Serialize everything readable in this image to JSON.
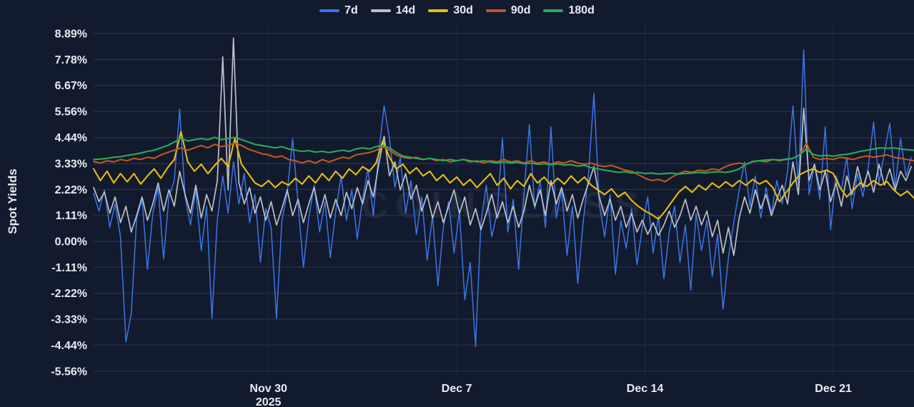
{
  "watermark": "COINGLASS",
  "colors": {
    "background": "#121a2d",
    "grid": "#242f4c",
    "tick_text": "#e9ecf2"
  },
  "chart_data": {
    "type": "line",
    "title": "",
    "xlabel": "",
    "ylabel": "Spot Yields",
    "legend_position": "top",
    "grid": true,
    "x_domain": [
      0,
      30.5
    ],
    "y_ticks": [
      {
        "label": "8.89%",
        "value": 8.89
      },
      {
        "label": "7.78%",
        "value": 7.78
      },
      {
        "label": "6.67%",
        "value": 6.67
      },
      {
        "label": "5.56%",
        "value": 5.56
      },
      {
        "label": "4.44%",
        "value": 4.44
      },
      {
        "label": "3.33%",
        "value": 3.33
      },
      {
        "label": "2.22%",
        "value": 2.22
      },
      {
        "label": "1.11%",
        "value": 1.11
      },
      {
        "label": "0.00%",
        "value": 0.0
      },
      {
        "label": "-1.11%",
        "value": -1.11
      },
      {
        "label": "-2.22%",
        "value": -2.22
      },
      {
        "label": "-3.33%",
        "value": -3.33
      },
      {
        "label": "-4.44%",
        "value": -4.44
      },
      {
        "label": "-5.56%",
        "value": -5.56
      }
    ],
    "x_ticks": [
      {
        "label": "Nov 30",
        "sublabel": "2025",
        "value": 6.5
      },
      {
        "label": "Dec 7",
        "sublabel": "",
        "value": 13.5
      },
      {
        "label": "Dec 14",
        "sublabel": "",
        "value": 20.5
      },
      {
        "label": "Dec 21",
        "sublabel": "",
        "value": 27.5
      }
    ],
    "series": [
      {
        "name": "7d",
        "color": "#3b76e8",
        "stroke_width": 1.5,
        "x0": 0,
        "dx": 0.2,
        "values": [
          2.05,
          1.3,
          2.2,
          0.6,
          1.6,
          0.2,
          -4.3,
          -3.1,
          1.0,
          1.8,
          -1.2,
          1.2,
          2.3,
          -0.75,
          1.9,
          2.6,
          5.66,
          1.9,
          0.7,
          2.2,
          -0.4,
          1.5,
          -3.3,
          0.9,
          2.8,
          1.2,
          3.4,
          1.6,
          2.9,
          0.8,
          2.0,
          -0.9,
          1.4,
          0.6,
          -3.3,
          0.9,
          2.1,
          4.4,
          1.6,
          -1.1,
          1.0,
          2.4,
          0.4,
          1.7,
          -0.7,
          1.3,
          2.8,
          0.9,
          2.2,
          0.1,
          1.8,
          3.1,
          1.1,
          3.8,
          5.8,
          4.4,
          2.3,
          3.6,
          1.2,
          2.6,
          0.3,
          1.9,
          -0.8,
          1.1,
          -1.9,
          0.6,
          1.7,
          -0.5,
          1.3,
          -2.5,
          -0.9,
          -4.5,
          0.8,
          2.4,
          0.2,
          1.2,
          4.4,
          0.4,
          1.8,
          -1.2,
          2.0,
          5.0,
          1.4,
          2.6,
          0.6,
          4.9,
          1.0,
          2.2,
          -0.6,
          1.5,
          -1.8,
          0.8,
          2.9,
          6.33,
          1.6,
          0.2,
          2.0,
          -1.4,
          0.9,
          -0.3,
          1.4,
          -1.0,
          0.6,
          1.9,
          -0.5,
          1.1,
          -1.6,
          0.4,
          1.5,
          -0.9,
          0.7,
          -2.1,
          1.2,
          -0.4,
          0.9,
          -1.5,
          0.3,
          -2.9,
          -0.7,
          0.8,
          2.2,
          3.4,
          1.5,
          2.8,
          1.0,
          2.3,
          1.2,
          2.6,
          1.6,
          3.0,
          5.8,
          2.4,
          8.2,
          2.0,
          3.3,
          1.8,
          4.9,
          0.5,
          2.8,
          2.2,
          3.6,
          1.4,
          2.9,
          1.9,
          3.2,
          5.1,
          2.5,
          3.8,
          5.05,
          2.3,
          4.4,
          2.8,
          3.6
        ]
      },
      {
        "name": "14d",
        "color": "#bcc0c9",
        "stroke_width": 1.7,
        "x0": 0,
        "dx": 0.2,
        "values": [
          2.3,
          1.7,
          2.1,
          1.2,
          1.9,
          0.8,
          1.5,
          0.4,
          1.1,
          1.9,
          0.9,
          1.6,
          2.5,
          1.3,
          2.2,
          1.5,
          3.0,
          2.0,
          1.2,
          2.4,
          1.0,
          2.0,
          1.3,
          2.6,
          7.9,
          2.2,
          8.7,
          2.5,
          1.6,
          2.3,
          1.2,
          1.9,
          0.9,
          1.7,
          0.7,
          1.4,
          2.2,
          1.1,
          1.8,
          0.8,
          1.6,
          2.3,
          1.2,
          2.0,
          1.0,
          1.8,
          1.1,
          2.1,
          1.4,
          2.3,
          1.6,
          2.6,
          1.9,
          3.3,
          4.5,
          2.8,
          3.4,
          2.2,
          2.9,
          1.8,
          2.4,
          1.3,
          2.0,
          1.0,
          1.7,
          0.8,
          1.5,
          2.2,
          1.2,
          1.9,
          0.7,
          1.4,
          0.5,
          1.2,
          2.0,
          1.0,
          1.7,
          0.8,
          1.5,
          0.6,
          1.3,
          2.4,
          1.5,
          2.2,
          1.1,
          2.6,
          1.6,
          2.3,
          1.3,
          2.0,
          1.0,
          1.8,
          2.5,
          3.2,
          1.9,
          1.1,
          1.8,
          0.9,
          1.5,
          0.6,
          1.2,
          0.4,
          0.9,
          0.3,
          0.8,
          0.25,
          0.7,
          1.3,
          0.6,
          1.1,
          1.8,
          0.9,
          1.5,
          0.7,
          1.3,
          0.2,
          0.9,
          -0.5,
          0.6,
          -0.6,
          1.0,
          1.9,
          1.2,
          2.2,
          1.4,
          2.0,
          1.1,
          1.8,
          2.4,
          1.6,
          3.4,
          2.0,
          5.7,
          2.6,
          3.3,
          2.2,
          3.0,
          1.7,
          2.5,
          1.5,
          2.8,
          2.0,
          3.2,
          2.3,
          3.0,
          2.1,
          3.3,
          2.4,
          3.1,
          2.2,
          3.0,
          2.6,
          3.2
        ]
      },
      {
        "name": "30d",
        "color": "#e6bd13",
        "stroke_width": 2.1,
        "x0": 0,
        "dx": 0.25,
        "values": [
          3.1,
          2.6,
          3.0,
          2.5,
          2.9,
          2.55,
          2.9,
          2.45,
          2.8,
          3.1,
          2.7,
          3.15,
          3.5,
          4.7,
          3.4,
          3.0,
          3.3,
          2.9,
          3.25,
          3.55,
          3.2,
          4.4,
          3.3,
          2.9,
          2.5,
          2.35,
          2.6,
          2.3,
          2.55,
          2.4,
          2.7,
          2.45,
          2.8,
          2.5,
          2.9,
          2.6,
          3.0,
          2.7,
          3.1,
          2.85,
          3.2,
          3.0,
          3.35,
          4.3,
          3.6,
          3.1,
          3.3,
          2.9,
          3.15,
          2.8,
          3.0,
          2.6,
          2.85,
          2.5,
          2.75,
          2.4,
          2.65,
          2.3,
          2.6,
          2.9,
          2.4,
          2.7,
          2.25,
          2.6,
          2.35,
          2.9,
          2.5,
          2.75,
          2.4,
          2.7,
          2.45,
          2.8,
          2.5,
          2.75,
          2.4,
          2.2,
          2.0,
          2.25,
          1.9,
          2.1,
          1.75,
          1.5,
          1.3,
          1.15,
          0.95,
          1.3,
          1.7,
          2.1,
          2.35,
          2.1,
          2.4,
          2.2,
          2.5,
          2.3,
          2.55,
          2.35,
          2.6,
          2.4,
          2.65,
          2.45,
          2.6,
          2.3,
          1.7,
          2.1,
          2.5,
          2.85,
          3.0,
          3.1,
          2.95,
          3.05,
          2.9,
          2.3,
          1.9,
          2.2,
          2.5,
          2.35,
          2.6,
          2.4,
          2.55,
          2.2,
          1.95,
          2.15,
          1.85
        ]
      },
      {
        "name": "90d",
        "color": "#c2571f",
        "stroke_width": 2.1,
        "x0": 0,
        "dx": 0.25,
        "values": [
          3.42,
          3.35,
          3.45,
          3.4,
          3.5,
          3.45,
          3.55,
          3.5,
          3.6,
          3.55,
          3.7,
          3.8,
          3.9,
          4.0,
          3.9,
          4.0,
          4.1,
          4.0,
          4.15,
          4.05,
          4.1,
          4.2,
          4.1,
          3.95,
          3.85,
          3.75,
          3.7,
          3.6,
          3.65,
          3.5,
          3.45,
          3.35,
          3.45,
          3.35,
          3.5,
          3.4,
          3.5,
          3.6,
          3.55,
          3.7,
          3.75,
          3.8,
          3.9,
          4.05,
          3.9,
          3.7,
          3.6,
          3.55,
          3.6,
          3.5,
          3.55,
          3.45,
          3.5,
          3.4,
          3.45,
          3.5,
          3.4,
          3.45,
          3.35,
          3.45,
          3.4,
          3.5,
          3.4,
          3.45,
          3.35,
          3.45,
          3.35,
          3.4,
          3.3,
          3.4,
          3.35,
          3.45,
          3.35,
          3.3,
          3.35,
          3.25,
          3.2,
          3.25,
          3.15,
          3.05,
          3.0,
          2.85,
          2.7,
          2.6,
          2.65,
          2.55,
          2.75,
          2.9,
          3.0,
          2.95,
          3.05,
          3.0,
          3.1,
          3.05,
          3.2,
          3.3,
          3.35,
          3.3,
          3.4,
          3.45,
          3.4,
          3.5,
          3.45,
          3.5,
          3.55,
          3.7,
          4.2,
          3.6,
          3.5,
          3.55,
          3.5,
          3.6,
          3.55,
          3.5,
          3.6,
          3.65,
          3.6,
          3.65,
          3.7,
          3.6,
          3.55,
          3.5,
          3.45
        ]
      },
      {
        "name": "180d",
        "color": "#28ab59",
        "stroke_width": 2.1,
        "x0": 0,
        "dx": 0.25,
        "values": [
          3.5,
          3.52,
          3.55,
          3.6,
          3.62,
          3.68,
          3.72,
          3.78,
          3.85,
          3.9,
          4.0,
          4.1,
          4.25,
          4.4,
          4.3,
          4.35,
          4.4,
          4.35,
          4.45,
          4.35,
          4.4,
          4.45,
          4.35,
          4.25,
          4.15,
          4.1,
          4.05,
          4.0,
          4.05,
          3.95,
          3.9,
          3.85,
          3.88,
          3.82,
          3.85,
          3.8,
          3.85,
          3.9,
          3.85,
          3.95,
          4.0,
          3.95,
          4.05,
          4.1,
          4.0,
          3.8,
          3.65,
          3.6,
          3.55,
          3.5,
          3.55,
          3.5,
          3.45,
          3.5,
          3.45,
          3.5,
          3.45,
          3.4,
          3.45,
          3.4,
          3.35,
          3.4,
          3.35,
          3.38,
          3.32,
          3.35,
          3.3,
          3.32,
          3.28,
          3.32,
          3.26,
          3.28,
          3.22,
          3.25,
          3.15,
          3.1,
          3.05,
          3.0,
          2.95,
          2.98,
          2.92,
          2.95,
          2.9,
          2.92,
          2.88,
          2.9,
          2.92,
          2.88,
          2.9,
          2.92,
          2.95,
          2.92,
          2.96,
          2.98,
          2.95,
          3.0,
          3.1,
          3.3,
          3.42,
          3.45,
          3.48,
          3.5,
          3.48,
          3.52,
          3.55,
          3.7,
          3.95,
          3.72,
          3.65,
          3.68,
          3.64,
          3.7,
          3.72,
          3.78,
          3.85,
          3.9,
          3.95,
          4.0,
          3.98,
          4.0,
          3.95,
          3.92,
          3.9
        ]
      }
    ]
  }
}
